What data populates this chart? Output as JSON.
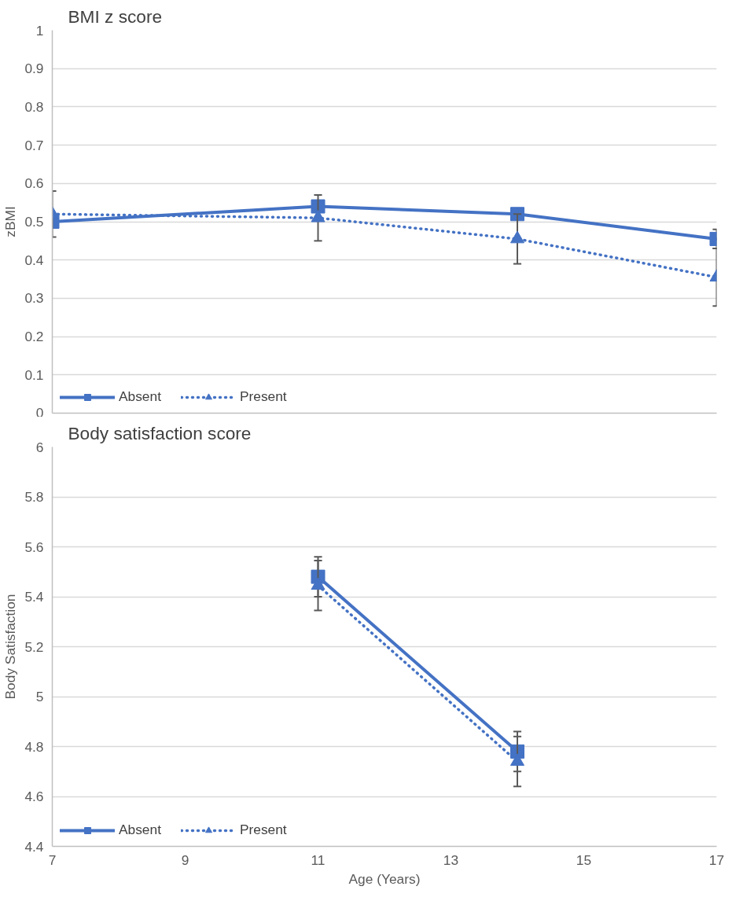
{
  "chart_data": [
    {
      "type": "line",
      "title": "BMI z score",
      "ylabel": "zBMI",
      "xlim": [
        7,
        17
      ],
      "ylim": [
        0,
        1
      ],
      "yticks": [
        0,
        0.1,
        0.2,
        0.3,
        0.4,
        0.5,
        0.6,
        0.7,
        0.8,
        0.9,
        1
      ],
      "tick_labels": "y",
      "grid": "y",
      "legend": "bottom left",
      "x": [
        7,
        11,
        14,
        17
      ],
      "series": [
        {
          "name": "Absent",
          "color": "#4472c4",
          "marker": "square",
          "line_style": "solid",
          "values": [
            0.5,
            0.54,
            0.52,
            0.455
          ],
          "errors": [
            null,
            null,
            null,
            0.025
          ]
        },
        {
          "name": "Present",
          "color": "#4472c4",
          "marker": "triangle",
          "line_style": "dotted",
          "values": [
            0.52,
            0.51,
            0.455,
            0.355
          ],
          "errors": [
            0.06,
            0.06,
            0.065,
            0.075
          ]
        }
      ]
    },
    {
      "type": "line",
      "title": "Body satisfaction score",
      "xlabel": "Age (Years)",
      "ylabel": "Body Satisfaction",
      "xlim": [
        7,
        17
      ],
      "xticks": [
        7,
        9,
        11,
        13,
        15,
        17
      ],
      "ylim": [
        4.4,
        6
      ],
      "yticks": [
        4.4,
        4.6,
        4.8,
        5,
        5.2,
        5.4,
        5.6,
        5.8,
        6
      ],
      "grid": "y",
      "legend": "bottom left",
      "x": [
        11,
        14
      ],
      "series": [
        {
          "name": "Absent",
          "color": "#4472c4",
          "marker": "square",
          "line_style": "solid",
          "values": [
            5.48,
            4.78
          ],
          "errors": [
            0.08,
            0.08
          ]
        },
        {
          "name": "Present",
          "color": "#4472c4",
          "marker": "triangle",
          "line_style": "dotted",
          "values": [
            5.445,
            4.74
          ],
          "errors": [
            0.1,
            0.1
          ]
        }
      ]
    }
  ]
}
